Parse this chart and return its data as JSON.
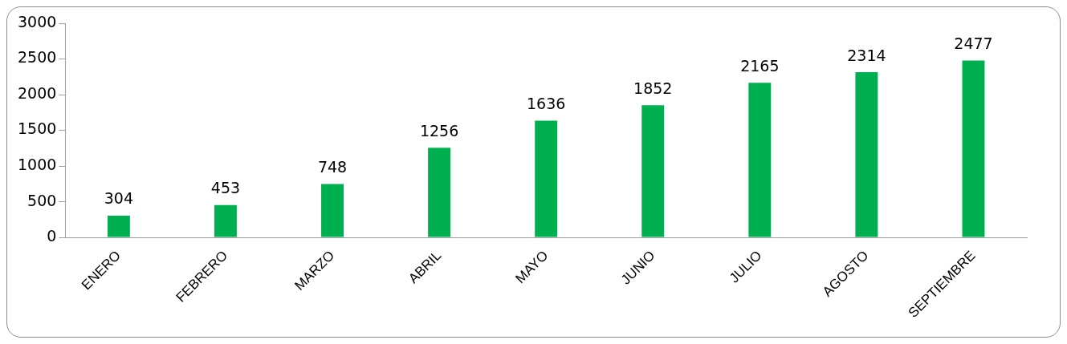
{
  "chart_data": {
    "type": "bar",
    "categories": [
      "ENERO",
      "FEBRERO",
      "MARZO",
      "ABRIL",
      "MAYO",
      "JUNIO",
      "JULIO",
      "AGOSTO",
      "SEPTIEMBRE"
    ],
    "values": [
      304,
      453,
      748,
      1256,
      1636,
      1852,
      2165,
      2314,
      2477
    ],
    "color": "#00b050",
    "ylim": [
      0,
      3000
    ],
    "yticks": [
      0,
      500,
      1000,
      1500,
      2000,
      2500,
      3000
    ],
    "grid": false,
    "legend": false,
    "data_labels": true
  }
}
